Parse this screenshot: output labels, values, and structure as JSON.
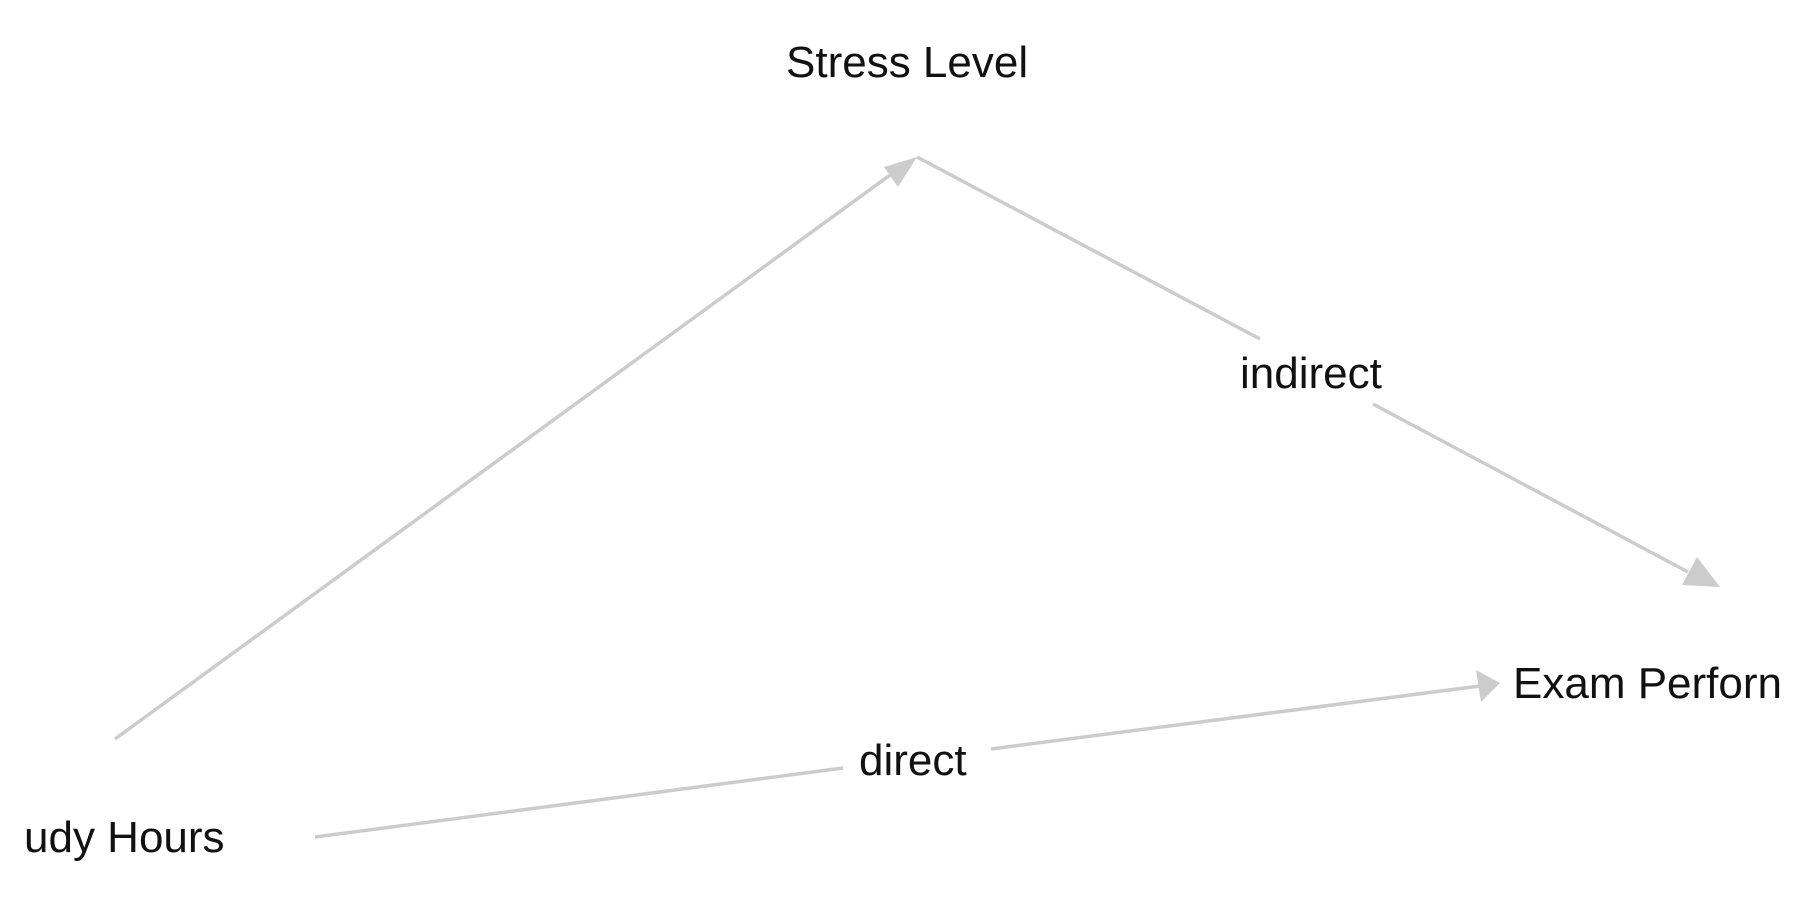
{
  "nodes": {
    "stress_level": "Stress Level",
    "study_hours": "udy Hours",
    "exam_performance": "Exam Perforn"
  },
  "edges": {
    "indirect_label": "indirect",
    "direct_label": "direct"
  },
  "colors": {
    "edge": "#cccccc",
    "text": "#111111",
    "background": "#ffffff"
  }
}
